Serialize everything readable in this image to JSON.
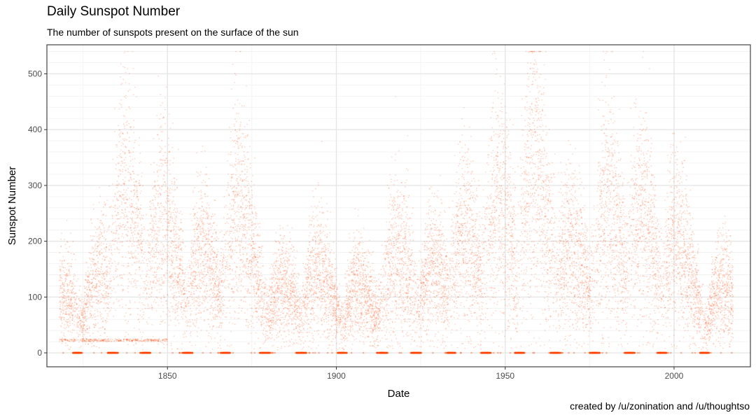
{
  "chart_data": {
    "type": "scatter",
    "title": "Daily Sunspot Number",
    "subtitle": "The number of sunspots present on the surface of the sun",
    "caption": "created by /u/zonination and /u/thoughtso",
    "xlabel": "Date",
    "ylabel": "Sunspot Number",
    "xlim": [
      1814.3,
      2022.6
    ],
    "ylim": [
      -25,
      552
    ],
    "x_ticks": [
      1850,
      1900,
      1950,
      2000
    ],
    "x_minor_ticks": [
      1825,
      1875,
      1925,
      1975
    ],
    "y_ticks": [
      0,
      100,
      200,
      300,
      400,
      500
    ],
    "y_minor_step": 20,
    "x_range": [
      1818.0,
      2017.5
    ],
    "grid": true,
    "legend": "none",
    "point_color": "#ff4500",
    "point_opacity": 0.12,
    "cycle_peaks": [
      {
        "year": 1818.5,
        "peak": 110
      },
      {
        "year": 1829.9,
        "peak": 150
      },
      {
        "year": 1837.2,
        "peak": 290
      },
      {
        "year": 1848.1,
        "peak": 240
      },
      {
        "year": 1860.1,
        "peak": 180
      },
      {
        "year": 1870.6,
        "peak": 260
      },
      {
        "year": 1883.9,
        "peak": 120
      },
      {
        "year": 1894.1,
        "peak": 150
      },
      {
        "year": 1906.2,
        "peak": 120
      },
      {
        "year": 1917.6,
        "peak": 185
      },
      {
        "year": 1928.4,
        "peak": 155
      },
      {
        "year": 1937.4,
        "peak": 220
      },
      {
        "year": 1947.5,
        "peak": 275
      },
      {
        "year": 1958.2,
        "peak": 330
      },
      {
        "year": 1968.9,
        "peak": 200
      },
      {
        "year": 1979.9,
        "peak": 260
      },
      {
        "year": 1989.6,
        "peak": 250
      },
      {
        "year": 2000.3,
        "peak": 200
      },
      {
        "year": 2014.3,
        "peak": 120
      }
    ],
    "cycle_minima": [
      1823.3,
      1833.9,
      1843.5,
      1855.9,
      1867.2,
      1878.9,
      1889.6,
      1901.7,
      1913.6,
      1923.6,
      1933.8,
      1944.2,
      1954.3,
      1964.9,
      1976.5,
      1986.8,
      1996.4,
      2008.9
    ]
  }
}
